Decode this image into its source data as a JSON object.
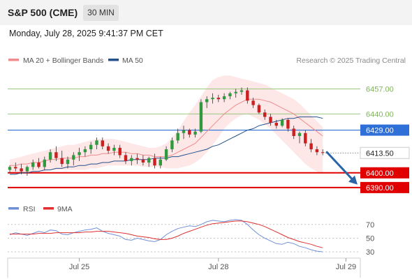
{
  "header": {
    "instrument": "S&P 500 (CME)",
    "timeframe": "30 MIN",
    "datetime": "Monday, July 28, 2025 9:41:37 PM CET"
  },
  "credit": "Research © 2025 Trading Central",
  "colors": {
    "resistance": "#8dc06e",
    "pivot": "#2f6fd8",
    "support": "#e00000",
    "ma20": "#f08c8c",
    "ma50": "#24508c",
    "band_fill": "#fde3e3",
    "candle_up": "#2f9a3e",
    "candle_down": "#cc1f1f",
    "rsi": "#6f8fd6",
    "rsi_ma": "#e03030",
    "arrow": "#2a64a8"
  },
  "chart_data": [
    {
      "type": "candlestick",
      "legend": [
        {
          "name": "MA 20 + Bollinger Bands",
          "color": "#f08c8c"
        },
        {
          "name": "MA 50",
          "color": "#24508c"
        }
      ],
      "ylim": [
        6380,
        6470
      ],
      "x_ticks": [
        {
          "label": "Jul 25",
          "index": 12
        },
        {
          "label": "Jul 28",
          "index": 36
        },
        {
          "label": "Jul 29",
          "index": 58
        }
      ],
      "levels": [
        {
          "value": 6457.0,
          "label": "6457.00",
          "kind": "resistance"
        },
        {
          "value": 6440.0,
          "label": "6440.00",
          "kind": "resistance"
        },
        {
          "value": 6429.0,
          "label": "6429.00",
          "kind": "pivot"
        },
        {
          "value": 6400.0,
          "label": "6400.00",
          "kind": "support"
        },
        {
          "value": 6390.0,
          "label": "6390.00",
          "kind": "support"
        }
      ],
      "last_price": {
        "value": 6413.5,
        "label": "6413.50"
      },
      "forecast": {
        "from": 6414,
        "to": 6392
      },
      "ohlc": [
        [
          6402,
          6405,
          6400,
          6404
        ],
        [
          6404,
          6407,
          6401,
          6403
        ],
        [
          6403,
          6406,
          6399,
          6401
        ],
        [
          6401,
          6405,
          6398,
          6404
        ],
        [
          6404,
          6409,
          6402,
          6407
        ],
        [
          6407,
          6410,
          6403,
          6404
        ],
        [
          6404,
          6411,
          6402,
          6409
        ],
        [
          6409,
          6416,
          6407,
          6414
        ],
        [
          6414,
          6418,
          6408,
          6410
        ],
        [
          6410,
          6415,
          6404,
          6406
        ],
        [
          6406,
          6411,
          6403,
          6409
        ],
        [
          6409,
          6414,
          6405,
          6412
        ],
        [
          6412,
          6417,
          6408,
          6414
        ],
        [
          6414,
          6418,
          6411,
          6416
        ],
        [
          6416,
          6421,
          6413,
          6419
        ],
        [
          6419,
          6424,
          6416,
          6422
        ],
        [
          6422,
          6424,
          6416,
          6418
        ],
        [
          6418,
          6420,
          6413,
          6415
        ],
        [
          6415,
          6419,
          6412,
          6417
        ],
        [
          6417,
          6419,
          6410,
          6412
        ],
        [
          6412,
          6414,
          6406,
          6408
        ],
        [
          6408,
          6412,
          6405,
          6410
        ],
        [
          6410,
          6413,
          6406,
          6409
        ],
        [
          6409,
          6412,
          6405,
          6407
        ],
        [
          6407,
          6411,
          6404,
          6410
        ],
        [
          6410,
          6413,
          6403,
          6405
        ],
        [
          6405,
          6411,
          6403,
          6409
        ],
        [
          6409,
          6418,
          6408,
          6416
        ],
        [
          6416,
          6424,
          6414,
          6422
        ],
        [
          6422,
          6430,
          6420,
          6427
        ],
        [
          6427,
          6432,
          6423,
          6429
        ],
        [
          6429,
          6430,
          6424,
          6426
        ],
        [
          6426,
          6430,
          6424,
          6428
        ],
        [
          6428,
          6450,
          6427,
          6448
        ],
        [
          6448,
          6452,
          6444,
          6450
        ],
        [
          6450,
          6454,
          6447,
          6451
        ],
        [
          6451,
          6453,
          6448,
          6450
        ],
        [
          6450,
          6454,
          6448,
          6452
        ],
        [
          6452,
          6455,
          6450,
          6454
        ],
        [
          6454,
          6457,
          6451,
          6455
        ],
        [
          6455,
          6458,
          6453,
          6456
        ],
        [
          6456,
          6458,
          6447,
          6449
        ],
        [
          6449,
          6451,
          6444,
          6446
        ],
        [
          6446,
          6447,
          6440,
          6441
        ],
        [
          6441,
          6443,
          6436,
          6438
        ],
        [
          6438,
          6440,
          6432,
          6434
        ],
        [
          6434,
          6436,
          6430,
          6432
        ],
        [
          6432,
          6437,
          6431,
          6436
        ],
        [
          6436,
          6437,
          6428,
          6430
        ],
        [
          6430,
          6432,
          6423,
          6425
        ],
        [
          6425,
          6428,
          6420,
          6427
        ],
        [
          6427,
          6429,
          6418,
          6420
        ],
        [
          6420,
          6423,
          6414,
          6416
        ],
        [
          6416,
          6418,
          6412,
          6414
        ],
        [
          6414,
          6416,
          6412,
          6413.5
        ]
      ],
      "ma20": [
        6405,
        6405,
        6406,
        6406,
        6407,
        6407,
        6408,
        6409,
        6409,
        6410,
        6410,
        6410,
        6411,
        6411,
        6412,
        6412,
        6413,
        6413,
        6414,
        6414,
        6414,
        6413,
        6413,
        6412,
        6412,
        6411,
        6411,
        6411,
        6412,
        6414,
        6416,
        6418,
        6420,
        6424,
        6428,
        6432,
        6436,
        6440,
        6443,
        6446,
        6448,
        6450,
        6450,
        6450,
        6449,
        6448,
        6446,
        6444,
        6442,
        6440,
        6437,
        6434,
        6431,
        6428,
        6425
      ],
      "bb_upper": [
        6409,
        6410,
        6411,
        6412,
        6413,
        6414,
        6415,
        6416,
        6417,
        6418,
        6419,
        6419,
        6420,
        6421,
        6422,
        6423,
        6423,
        6423,
        6423,
        6422,
        6421,
        6420,
        6419,
        6418,
        6417,
        6417,
        6418,
        6420,
        6424,
        6429,
        6435,
        6441,
        6446,
        6452,
        6458,
        6463,
        6465,
        6466,
        6466,
        6465,
        6464,
        6463,
        6462,
        6461,
        6460,
        6458,
        6456,
        6454,
        6452,
        6450,
        6447,
        6443,
        6439,
        6435,
        6431
      ],
      "bb_lower": [
        6399,
        6399,
        6400,
        6400,
        6401,
        6401,
        6401,
        6402,
        6402,
        6402,
        6402,
        6402,
        6402,
        6402,
        6403,
        6403,
        6404,
        6405,
        6405,
        6405,
        6405,
        6405,
        6405,
        6404,
        6404,
        6404,
        6404,
        6403,
        6403,
        6403,
        6404,
        6405,
        6407,
        6410,
        6414,
        6419,
        6424,
        6430,
        6434,
        6437,
        6439,
        6440,
        6438,
        6436,
        6433,
        6430,
        6426,
        6422,
        6418,
        6414,
        6410,
        6406,
        6403,
        6401,
        6399
      ],
      "ma50": [
        6399,
        6399,
        6400,
        6400,
        6401,
        6401,
        6402,
        6402,
        6403,
        6403,
        6404,
        6404,
        6405,
        6405,
        6406,
        6406,
        6407,
        6407,
        6408,
        6408,
        6408,
        6409,
        6409,
        6409,
        6409,
        6410,
        6410,
        6410,
        6411,
        6411,
        6412,
        6413,
        6414,
        6415,
        6416,
        6418,
        6419,
        6421,
        6423,
        6425,
        6427,
        6429,
        6430,
        6432,
        6433,
        6434,
        6435,
        6436,
        6437,
        6437,
        6438,
        6438,
        6438,
        6438,
        6437
      ]
    },
    {
      "type": "line",
      "legend": [
        {
          "name": "RSI",
          "color": "#6f8fd6"
        },
        {
          "name": "9MA",
          "color": "#e03030"
        }
      ],
      "ylim": [
        25,
        80
      ],
      "y_ticks": [
        {
          "value": 70,
          "label": "70"
        },
        {
          "value": 50,
          "label": "50"
        },
        {
          "value": 30,
          "label": "30"
        }
      ],
      "series": [
        {
          "name": "RSI",
          "values": [
            55,
            58,
            56,
            54,
            57,
            60,
            58,
            62,
            61,
            56,
            55,
            58,
            60,
            62,
            63,
            65,
            60,
            57,
            55,
            53,
            48,
            47,
            50,
            48,
            46,
            45,
            48,
            55,
            60,
            64,
            66,
            68,
            67,
            70,
            74,
            76,
            75,
            74,
            76,
            77,
            76,
            70,
            62,
            55,
            50,
            46,
            42,
            41,
            44,
            42,
            38,
            36,
            33,
            31,
            30
          ]
        },
        {
          "name": "9MA",
          "values": [
            56,
            56,
            56,
            56,
            56,
            57,
            57,
            57,
            58,
            58,
            58,
            58,
            58,
            59,
            59,
            60,
            60,
            60,
            59,
            58,
            57,
            55,
            53,
            52,
            51,
            49,
            48,
            48,
            50,
            53,
            57,
            60,
            63,
            66,
            69,
            71,
            72,
            73,
            74,
            75,
            75,
            74,
            72,
            70,
            67,
            63,
            59,
            55,
            51,
            48,
            45,
            43,
            41,
            38,
            36
          ]
        }
      ]
    }
  ]
}
